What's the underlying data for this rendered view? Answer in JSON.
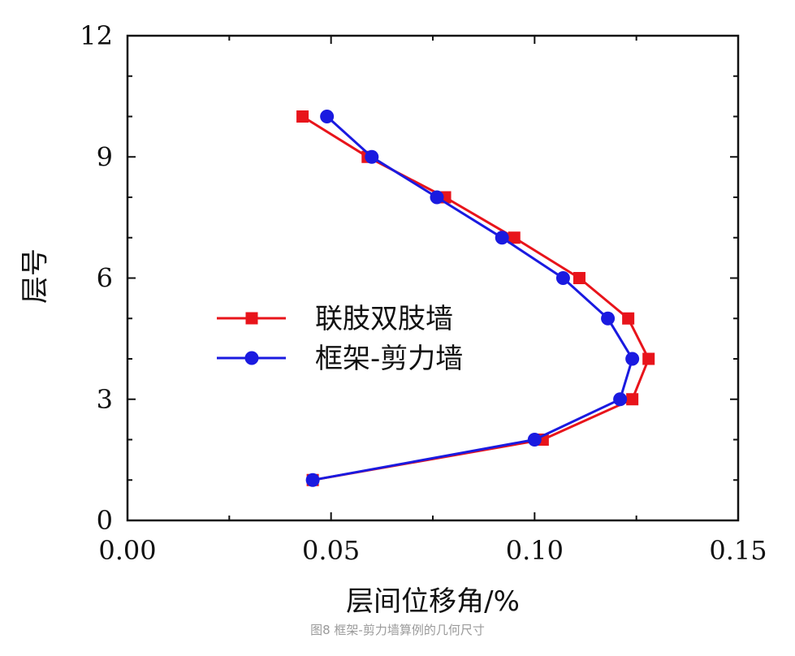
{
  "chart_data": {
    "type": "line",
    "title": "",
    "xlabel": "层间位移角/%",
    "ylabel": "层号",
    "xlim": [
      0.0,
      0.15
    ],
    "ylim": [
      0,
      12
    ],
    "xticks": [
      "0.00",
      "0.05",
      "0.10",
      "0.15"
    ],
    "yticks": [
      "0",
      "3",
      "6",
      "9",
      "12"
    ],
    "xtick_values": [
      0.0,
      0.05,
      0.1,
      0.15
    ],
    "ytick_values": [
      0,
      3,
      6,
      9,
      12
    ],
    "legend_position": "center-left",
    "series": [
      {
        "name": "联肢双肢墙",
        "color": "#e8141b",
        "marker": "square",
        "x": [
          0.0455,
          0.102,
          0.124,
          0.128,
          0.123,
          0.111,
          0.095,
          0.078,
          0.059,
          0.043
        ],
        "y": [
          1,
          2,
          3,
          4,
          5,
          6,
          7,
          8,
          9,
          10
        ]
      },
      {
        "name": "框架-剪力墙",
        "color": "#1a1ae0",
        "marker": "circle",
        "x": [
          0.0455,
          0.1,
          0.121,
          0.124,
          0.118,
          0.107,
          0.092,
          0.076,
          0.06,
          0.049
        ],
        "y": [
          1,
          2,
          3,
          4,
          5,
          6,
          7,
          8,
          9,
          10
        ]
      }
    ]
  },
  "caption": "图8  框架-剪力墙算例的几何尺寸"
}
